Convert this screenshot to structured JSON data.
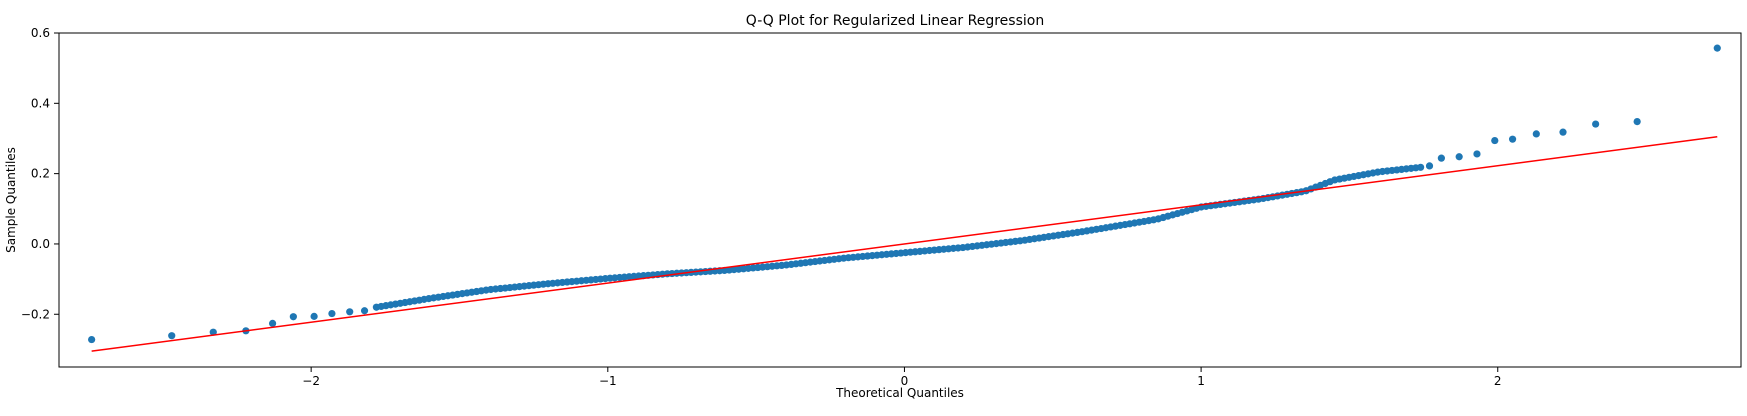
{
  "chart_data": {
    "type": "scatter",
    "title": "Q-Q Plot for Regularized Linear Regression",
    "xlabel": "Theoretical Quantiles",
    "ylabel": "Sample Quantiles",
    "xlim": [
      -2.85,
      2.82
    ],
    "ylim": [
      -0.35,
      0.6
    ],
    "xticks": [
      -2,
      -1,
      0,
      1,
      2
    ],
    "xtick_labels": [
      "−2",
      "−1",
      "0",
      "1",
      "2"
    ],
    "yticks": [
      -0.2,
      0.0,
      0.2,
      0.4,
      0.6
    ],
    "ytick_labels": [
      "−0.2",
      "0.0",
      "0.2",
      "0.4",
      "0.6"
    ],
    "grid": false,
    "legend": "none",
    "point_color": "#1f77b4",
    "line_color": "#ff0000",
    "outlier_points": [
      {
        "x": -2.74,
        "y": -0.272
      },
      {
        "x": -2.47,
        "y": -0.261
      },
      {
        "x": -2.33,
        "y": -0.251
      },
      {
        "x": -2.22,
        "y": -0.247
      },
      {
        "x": -2.13,
        "y": -0.226
      },
      {
        "x": -2.06,
        "y": -0.207
      },
      {
        "x": -1.99,
        "y": -0.206
      },
      {
        "x": -1.93,
        "y": -0.198
      },
      {
        "x": -1.87,
        "y": -0.193
      },
      {
        "x": -1.82,
        "y": -0.19
      },
      {
        "x": 1.77,
        "y": 0.222
      },
      {
        "x": 1.81,
        "y": 0.244
      },
      {
        "x": 1.87,
        "y": 0.248
      },
      {
        "x": 1.93,
        "y": 0.256
      },
      {
        "x": 1.99,
        "y": 0.294
      },
      {
        "x": 2.05,
        "y": 0.298
      },
      {
        "x": 2.13,
        "y": 0.313
      },
      {
        "x": 2.22,
        "y": 0.318
      },
      {
        "x": 2.33,
        "y": 0.341
      },
      {
        "x": 2.47,
        "y": 0.348
      },
      {
        "x": 2.74,
        "y": 0.557
      }
    ],
    "dense_curve": [
      {
        "x": -1.78,
        "y": -0.18
      },
      {
        "x": -1.6,
        "y": -0.155
      },
      {
        "x": -1.4,
        "y": -0.13
      },
      {
        "x": -1.2,
        "y": -0.113
      },
      {
        "x": -1.0,
        "y": -0.098
      },
      {
        "x": -0.8,
        "y": -0.085
      },
      {
        "x": -0.6,
        "y": -0.075
      },
      {
        "x": -0.4,
        "y": -0.06
      },
      {
        "x": -0.2,
        "y": -0.04
      },
      {
        "x": 0.0,
        "y": -0.025
      },
      {
        "x": 0.2,
        "y": -0.01
      },
      {
        "x": 0.4,
        "y": 0.01
      },
      {
        "x": 0.6,
        "y": 0.035
      },
      {
        "x": 0.85,
        "y": 0.07
      },
      {
        "x": 1.0,
        "y": 0.105
      },
      {
        "x": 1.2,
        "y": 0.128
      },
      {
        "x": 1.35,
        "y": 0.15
      },
      {
        "x": 1.45,
        "y": 0.182
      },
      {
        "x": 1.6,
        "y": 0.205
      },
      {
        "x": 1.74,
        "y": 0.218
      }
    ],
    "dense_point_count": 220,
    "reference_line": {
      "x": [
        -2.74,
        2.74
      ],
      "y": [
        -0.305,
        0.305
      ]
    }
  }
}
